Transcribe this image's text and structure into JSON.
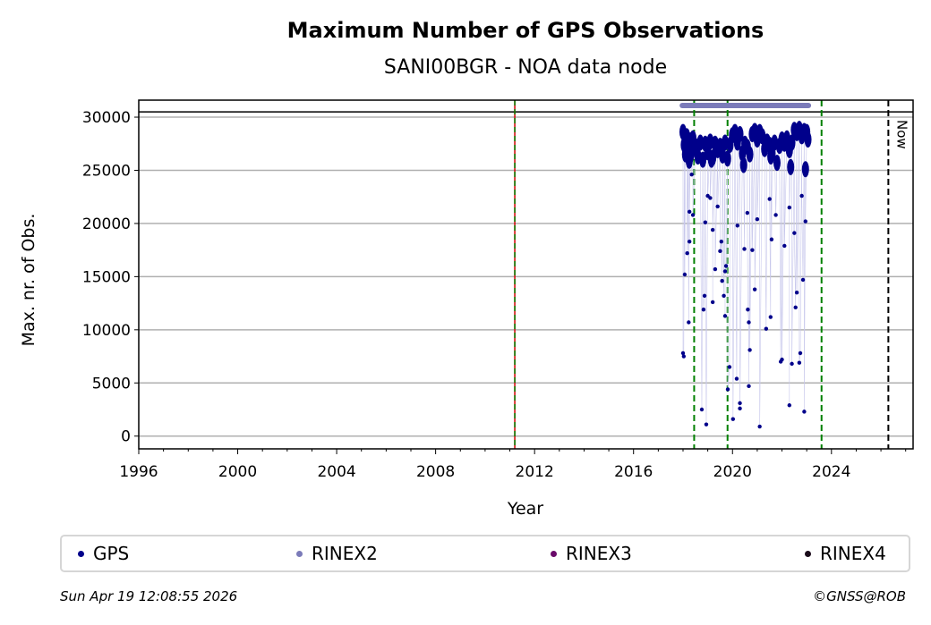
{
  "chart_data": {
    "type": "scatter",
    "title": "Maximum Number of GPS Observations",
    "subtitle": "SANI00BGR - NOA data node",
    "xlabel": "Year",
    "ylabel": "Max. nr. of Obs.",
    "xlim": [
      1996,
      2027.3
    ],
    "ylim": [
      -1200,
      31600
    ],
    "xticks": [
      "1996",
      "2000",
      "2004",
      "2008",
      "2012",
      "2016",
      "2020",
      "2024"
    ],
    "xtick_values": [
      1996,
      2000,
      2004,
      2008,
      2012,
      2016,
      2020,
      2024
    ],
    "yticks": [
      "0",
      "5000",
      "10000",
      "15000",
      "20000",
      "25000",
      "30000"
    ],
    "ytick_values": [
      0,
      5000,
      10000,
      15000,
      20000,
      25000,
      30000
    ],
    "grid": "horizontal",
    "reference_line_y": 30500,
    "now_label": "Now",
    "now_year": 2026.3,
    "red_line_year": 2011.2,
    "green_lines_years": [
      2018.45,
      2019.8,
      2023.6
    ],
    "rinex2_span": [
      2017.97,
      2023.07
    ],
    "rinex2_level": 31100,
    "series": [
      {
        "name": "GPS",
        "color": "#00008b",
        "band": [
          [
            2018.0,
            28600
          ],
          [
            2018.05,
            27400
          ],
          [
            2018.1,
            26500
          ],
          [
            2018.15,
            28200
          ],
          [
            2018.2,
            27000
          ],
          [
            2018.25,
            25900
          ],
          [
            2018.3,
            27800
          ],
          [
            2018.35,
            26800
          ],
          [
            2018.4,
            28000
          ],
          [
            2018.5,
            27300
          ],
          [
            2018.6,
            26300
          ],
          [
            2018.7,
            27600
          ],
          [
            2018.8,
            26000
          ],
          [
            2018.9,
            27500
          ],
          [
            2019.0,
            26700
          ],
          [
            2019.1,
            27700
          ],
          [
            2019.2,
            26200
          ],
          [
            2019.3,
            27500
          ],
          [
            2019.4,
            26900
          ],
          [
            2019.5,
            27300
          ],
          [
            2019.6,
            26400
          ],
          [
            2019.7,
            27600
          ],
          [
            2019.8,
            26100
          ],
          [
            2019.9,
            27400
          ],
          [
            2020.0,
            28300
          ],
          [
            2020.1,
            28600
          ],
          [
            2020.2,
            27600
          ],
          [
            2020.3,
            28400
          ],
          [
            2020.4,
            26600
          ],
          [
            2020.5,
            27500
          ],
          [
            2020.6,
            27200
          ],
          [
            2020.7,
            26500
          ],
          [
            2020.8,
            28400
          ],
          [
            2020.9,
            28700
          ],
          [
            2021.0,
            27900
          ],
          [
            2021.1,
            28600
          ],
          [
            2021.2,
            28200
          ],
          [
            2021.3,
            27000
          ],
          [
            2021.4,
            27700
          ],
          [
            2021.5,
            27400
          ],
          [
            2021.6,
            26600
          ],
          [
            2021.7,
            27600
          ],
          [
            2021.8,
            25700
          ],
          [
            2021.9,
            27300
          ],
          [
            2022.0,
            27900
          ],
          [
            2022.1,
            27500
          ],
          [
            2022.2,
            28000
          ],
          [
            2022.3,
            26900
          ],
          [
            2022.4,
            27600
          ],
          [
            2022.5,
            28800
          ],
          [
            2022.6,
            28500
          ],
          [
            2022.7,
            28900
          ],
          [
            2022.8,
            28200
          ],
          [
            2022.9,
            28700
          ],
          [
            2023.0,
            28600
          ],
          [
            2023.05,
            27900
          ],
          [
            2018.3,
            26400
          ],
          [
            2019.15,
            26000
          ],
          [
            2020.45,
            25500
          ],
          [
            2021.55,
            26300
          ],
          [
            2022.35,
            25300
          ],
          [
            2022.95,
            25100
          ]
        ],
        "points": [
          [
            2018.0,
            7800
          ],
          [
            2018.03,
            7500
          ],
          [
            2018.07,
            15200
          ],
          [
            2018.17,
            17200
          ],
          [
            2018.23,
            10700
          ],
          [
            2018.26,
            18300
          ],
          [
            2018.26,
            21100
          ],
          [
            2018.4,
            20800
          ],
          [
            2018.35,
            24600
          ],
          [
            2018.76,
            2500
          ],
          [
            2018.83,
            11900
          ],
          [
            2018.94,
            1100
          ],
          [
            2018.87,
            13200
          ],
          [
            2018.9,
            20100
          ],
          [
            2019.2,
            12600
          ],
          [
            2019.3,
            15700
          ],
          [
            2019.0,
            22600
          ],
          [
            2019.1,
            22400
          ],
          [
            2019.5,
            17400
          ],
          [
            2019.55,
            18300
          ],
          [
            2019.58,
            14600
          ],
          [
            2019.65,
            13200
          ],
          [
            2019.7,
            11300
          ],
          [
            2019.7,
            15500
          ],
          [
            2019.74,
            16000
          ],
          [
            2019.81,
            4400
          ],
          [
            2019.88,
            6500
          ],
          [
            2020.02,
            1600
          ],
          [
            2020.17,
            5400
          ],
          [
            2020.3,
            3100
          ],
          [
            2020.3,
            2600
          ],
          [
            2020.48,
            17600
          ],
          [
            2020.62,
            11900
          ],
          [
            2020.66,
            10700
          ],
          [
            2020.66,
            4700
          ],
          [
            2020.7,
            8100
          ],
          [
            2020.8,
            17500
          ],
          [
            2020.9,
            13800
          ],
          [
            2021.0,
            20400
          ],
          [
            2021.1,
            900
          ],
          [
            2021.36,
            10100
          ],
          [
            2021.54,
            11200
          ],
          [
            2021.58,
            18500
          ],
          [
            2021.5,
            22300
          ],
          [
            2021.75,
            20800
          ],
          [
            2021.95,
            7000
          ],
          [
            2022.0,
            7200
          ],
          [
            2022.1,
            17900
          ],
          [
            2022.3,
            2900
          ],
          [
            2022.4,
            6800
          ],
          [
            2022.5,
            19100
          ],
          [
            2022.55,
            12100
          ],
          [
            2022.6,
            13500
          ],
          [
            2022.7,
            6900
          ],
          [
            2022.74,
            7800
          ],
          [
            2022.9,
            2300
          ],
          [
            2022.85,
            14700
          ],
          [
            2022.8,
            22600
          ],
          [
            2020.6,
            21000
          ],
          [
            2020.2,
            19800
          ],
          [
            2019.4,
            21600
          ],
          [
            2019.2,
            19400
          ],
          [
            2022.95,
            20200
          ],
          [
            2022.3,
            21500
          ]
        ]
      },
      {
        "name": "RINEX2",
        "color": "#7b7bb9"
      },
      {
        "name": "RINEX3",
        "color": "#6a0a6a"
      },
      {
        "name": "RINEX4",
        "color": "#1a0a1a"
      }
    ]
  },
  "footer": {
    "timestamp": "Sun Apr 19 12:08:55 2026",
    "copyright": "©GNSS@ROB"
  }
}
